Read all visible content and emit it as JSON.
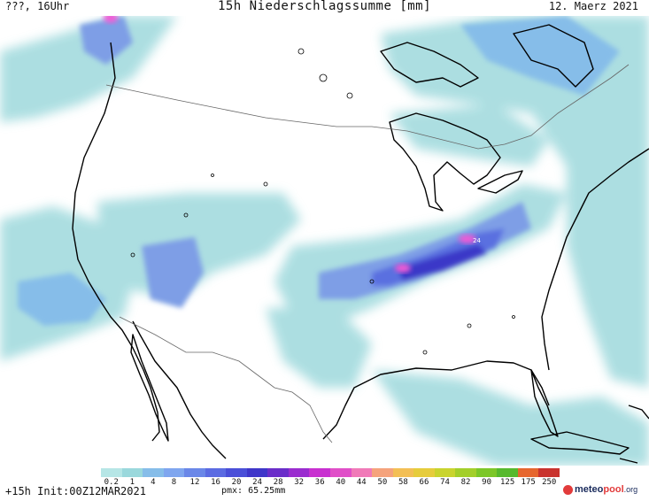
{
  "header": {
    "left": "???, 16Uhr",
    "title": "15h Niederschlagssumme [mm]",
    "date": "12. Maerz 2021"
  },
  "map": {
    "max_label": "24",
    "colors": {
      "light": "#a8dde0",
      "cyan": "#7cc9d3",
      "blue": "#7e9ee6",
      "mid_blue": "#5a6fe0",
      "deep_blue": "#3a38c8",
      "violet": "#9b3fdc",
      "pink": "#ee5bd6"
    }
  },
  "legend": {
    "ticks": [
      "0.2",
      "1",
      "4",
      "8",
      "12",
      "16",
      "20",
      "24",
      "28",
      "32",
      "36",
      "40",
      "44",
      "50",
      "58",
      "66",
      "74",
      "82",
      "90",
      "125",
      "175",
      "250"
    ],
    "colors": [
      "#b6e6e6",
      "#9ad8dc",
      "#86bde9",
      "#7fa6ef",
      "#6a87e8",
      "#5b6be2",
      "#4a4fd8",
      "#3f36c9",
      "#6a2dc9",
      "#9a2ccf",
      "#c830d0",
      "#e04fc8",
      "#f07ab8",
      "#f5a37c",
      "#f3bf55",
      "#e6cc3c",
      "#c9d42e",
      "#a3cf2a",
      "#7cc728",
      "#56b92d",
      "#e6662e",
      "#c9332e"
    ]
  },
  "footer": {
    "init": "+15h Init:00Z12MAR2021",
    "pmx": "pmx: 65.25mm",
    "brand1": "meteo",
    "brand2": "pool",
    "brand3": ".org"
  }
}
